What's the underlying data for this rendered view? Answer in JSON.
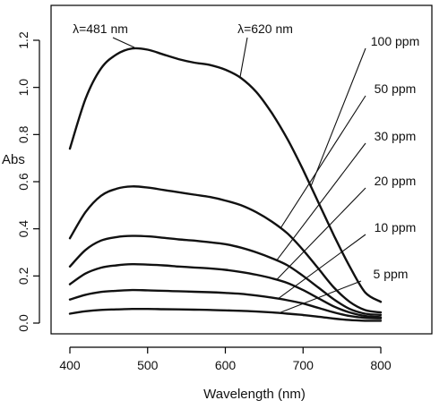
{
  "chart_data": {
    "type": "line",
    "xlabel": "Wavelength (nm)",
    "ylabel": "Abs",
    "xlim": [
      390,
      850
    ],
    "ylim": [
      -0.02,
      1.28
    ],
    "xticks": [
      400,
      500,
      600,
      700,
      800
    ],
    "yticks": [
      0.0,
      0.2,
      0.4,
      0.6,
      0.8,
      1.0,
      1.2
    ],
    "grid": false,
    "series": [
      {
        "name": "100 ppm",
        "label_at_x": 710,
        "x": [
          400,
          420,
          440,
          460,
          480,
          500,
          520,
          540,
          560,
          580,
          600,
          620,
          640,
          660,
          680,
          700,
          720,
          740,
          760,
          780,
          800
        ],
        "y": [
          0.74,
          0.95,
          1.08,
          1.14,
          1.165,
          1.16,
          1.14,
          1.12,
          1.105,
          1.095,
          1.075,
          1.04,
          0.98,
          0.89,
          0.78,
          0.65,
          0.51,
          0.37,
          0.24,
          0.13,
          0.09
        ]
      },
      {
        "name": "50 ppm",
        "label_at_x": 671,
        "x": [
          400,
          420,
          440,
          460,
          480,
          500,
          520,
          540,
          560,
          580,
          600,
          620,
          640,
          660,
          680,
          700,
          720,
          740,
          760,
          780,
          800
        ],
        "y": [
          0.36,
          0.47,
          0.54,
          0.57,
          0.58,
          0.575,
          0.565,
          0.555,
          0.545,
          0.535,
          0.52,
          0.5,
          0.47,
          0.43,
          0.38,
          0.31,
          0.23,
          0.15,
          0.09,
          0.055,
          0.045
        ]
      },
      {
        "name": "30 ppm",
        "label_at_x": 666,
        "x": [
          400,
          420,
          440,
          460,
          480,
          500,
          520,
          540,
          560,
          580,
          600,
          620,
          640,
          660,
          680,
          700,
          720,
          740,
          760,
          780,
          800
        ],
        "y": [
          0.24,
          0.31,
          0.35,
          0.365,
          0.37,
          0.368,
          0.362,
          0.355,
          0.35,
          0.343,
          0.335,
          0.32,
          0.3,
          0.275,
          0.245,
          0.2,
          0.15,
          0.1,
          0.06,
          0.04,
          0.035
        ]
      },
      {
        "name": "20 ppm",
        "label_at_x": 666,
        "x": [
          400,
          420,
          440,
          460,
          480,
          500,
          520,
          540,
          560,
          580,
          600,
          620,
          640,
          660,
          680,
          700,
          720,
          740,
          760,
          780,
          800
        ],
        "y": [
          0.165,
          0.21,
          0.235,
          0.245,
          0.25,
          0.248,
          0.245,
          0.24,
          0.236,
          0.232,
          0.226,
          0.217,
          0.205,
          0.19,
          0.17,
          0.14,
          0.105,
          0.07,
          0.045,
          0.03,
          0.025
        ]
      },
      {
        "name": "10 ppm",
        "label_at_x": 668,
        "x": [
          400,
          420,
          440,
          460,
          480,
          500,
          520,
          540,
          560,
          580,
          600,
          620,
          640,
          660,
          680,
          700,
          720,
          740,
          760,
          780,
          800
        ],
        "y": [
          0.1,
          0.12,
          0.132,
          0.137,
          0.14,
          0.139,
          0.137,
          0.135,
          0.133,
          0.131,
          0.128,
          0.124,
          0.117,
          0.108,
          0.097,
          0.083,
          0.064,
          0.045,
          0.03,
          0.022,
          0.02
        ]
      },
      {
        "name": "5 ppm",
        "label_at_x": 669,
        "x": [
          400,
          420,
          440,
          460,
          480,
          500,
          520,
          540,
          560,
          580,
          600,
          620,
          640,
          660,
          680,
          700,
          720,
          740,
          760,
          780,
          800
        ],
        "y": [
          0.04,
          0.05,
          0.056,
          0.058,
          0.06,
          0.06,
          0.059,
          0.058,
          0.057,
          0.056,
          0.054,
          0.052,
          0.049,
          0.045,
          0.04,
          0.034,
          0.027,
          0.019,
          0.013,
          0.01,
          0.01
        ]
      }
    ],
    "annotations": [
      {
        "text": "λ=481 nm",
        "x": 481,
        "y": 1.165
      },
      {
        "text": "λ=620 nm",
        "x": 620,
        "y": 1.04
      }
    ]
  }
}
